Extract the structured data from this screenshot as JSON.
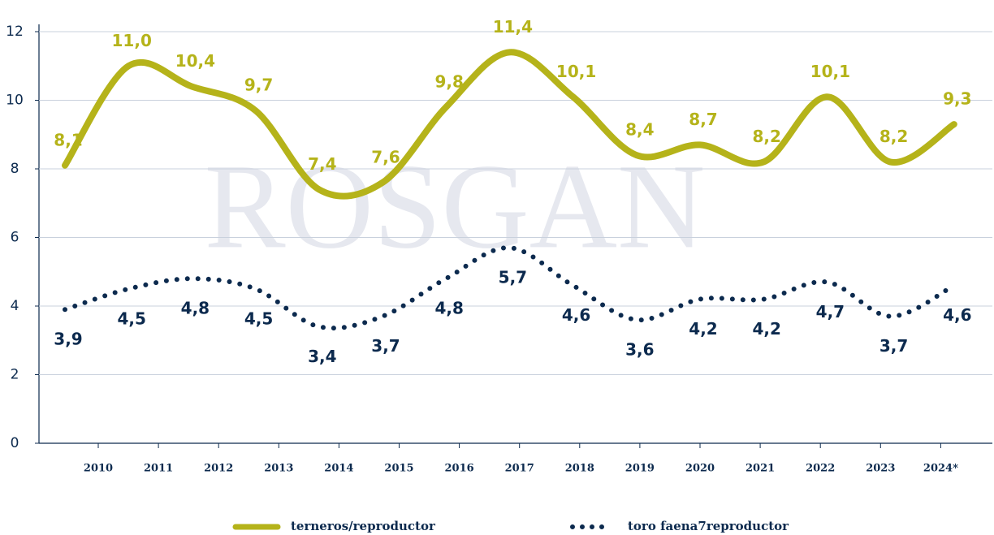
{
  "chart_data": {
    "type": "line",
    "watermark": "ROSGAN",
    "categories": [
      "2010",
      "2011",
      "2012",
      "2013",
      "2014",
      "2015",
      "2016",
      "2017",
      "2018",
      "2019",
      "2020",
      "2021",
      "2022",
      "2023",
      "2024*"
    ],
    "series": [
      {
        "name": "terneros/reproductor",
        "color": "#b5b31a",
        "style": "solid",
        "values": [
          8.1,
          11.0,
          10.4,
          9.7,
          7.4,
          7.6,
          9.8,
          11.4,
          10.1,
          8.4,
          8.7,
          8.2,
          10.1,
          8.2,
          9.3
        ],
        "value_labels": [
          "8,1",
          "11,0",
          "10,4",
          "9,7",
          "7,4",
          "7,6",
          "9,8",
          "11,4",
          "10,1",
          "8,4",
          "8,7",
          "8,2",
          "10,1",
          "8,2",
          "9,3"
        ]
      },
      {
        "name": "toro faena7reproductor",
        "color": "#0c2a4e",
        "style": "dotted",
        "values": [
          3.9,
          4.5,
          4.8,
          4.5,
          3.4,
          3.7,
          4.8,
          5.7,
          4.6,
          3.6,
          4.2,
          4.2,
          4.7,
          3.7,
          4.6
        ],
        "value_labels": [
          "3,9",
          "4,5",
          "4,8",
          "4,5",
          "3,4",
          "3,7",
          "4,8",
          "5,7",
          "4,6",
          "3,6",
          "4,2",
          "4,2",
          "4,7",
          "3,7",
          "4,6"
        ]
      }
    ],
    "ylim": [
      0,
      12
    ],
    "yticks": [
      0,
      2,
      4,
      6,
      8,
      10,
      12
    ],
    "grid": true
  }
}
